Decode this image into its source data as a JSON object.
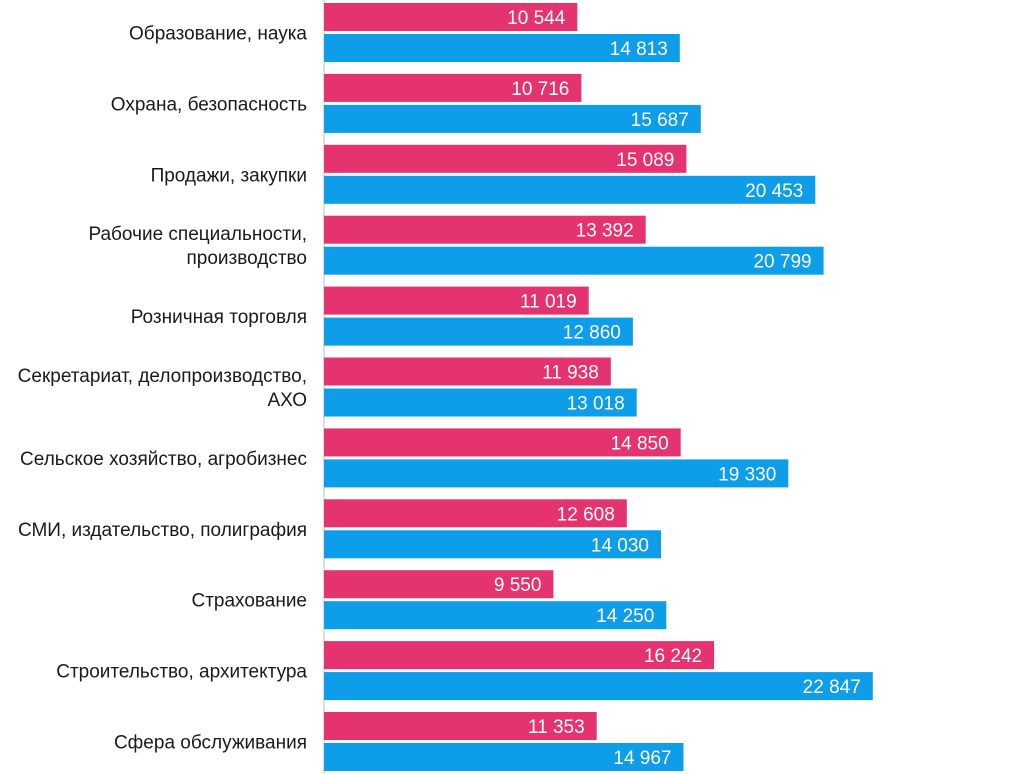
{
  "chart_data": {
    "type": "bar",
    "orientation": "horizontal",
    "title": "",
    "xlabel": "",
    "ylabel": "",
    "xlim": [
      0,
      25000
    ],
    "grid": false,
    "legend": "none",
    "categories": [
      "Образование, наука",
      "Охрана, безопасность",
      "Продажи, закупки",
      "Рабочие специальности, производство",
      "Розничная торговля",
      "Секретариат, делопроизводство, АХО",
      "Сельское хозяйство, агробизнес",
      "СМИ, издательство, полиграфия",
      "Страхование",
      "Строительство, архитектура",
      "Сфера обслуживания"
    ],
    "category_lines": [
      [
        "Образование, наука"
      ],
      [
        "Охрана, безопасность"
      ],
      [
        "Продажи, закупки"
      ],
      [
        "Рабочие специальности,",
        "производство"
      ],
      [
        "Розничная торговля"
      ],
      [
        "Секретариат, делопроизводство,",
        "АХО"
      ],
      [
        "Сельское хозяйство, агробизнес"
      ],
      [
        "СМИ, издательство, полиграфия"
      ],
      [
        "Страхование"
      ],
      [
        "Строительство, архитектура"
      ],
      [
        "Сфера обслуживания"
      ]
    ],
    "series": [
      {
        "color": "#e4336e",
        "values": [
          10544,
          10716,
          15089,
          13392,
          11019,
          11938,
          14850,
          12608,
          9550,
          16242,
          11353
        ],
        "labels": [
          "10 544",
          "10 716",
          "15 089",
          "13 392",
          "11 019",
          "11 938",
          "14 850",
          "12 608",
          "9 550",
          "16 242",
          "11 353"
        ]
      },
      {
        "color": "#0e9de8",
        "values": [
          14813,
          15687,
          20453,
          20799,
          12860,
          13018,
          19330,
          14030,
          14250,
          22847,
          14967
        ],
        "labels": [
          "14 813",
          "15 687",
          "20 453",
          "20 799",
          "12 860",
          "13 018",
          "19 330",
          "14 030",
          "14 250",
          "22 847",
          "14 967"
        ]
      }
    ]
  }
}
